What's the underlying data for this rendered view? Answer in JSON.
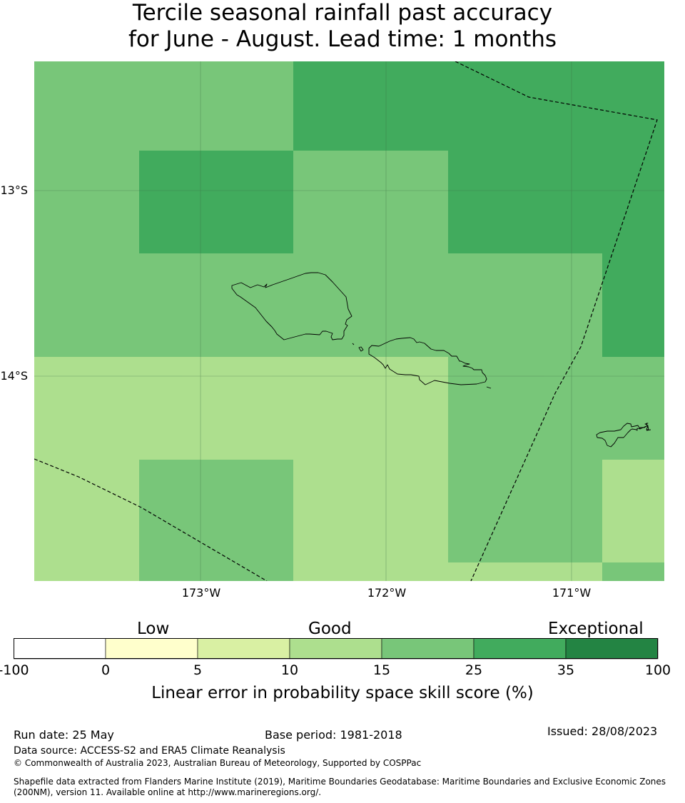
{
  "title": {
    "line1": "Tercile seasonal rainfall past accuracy",
    "line2": "for June - August. Lead time: 1 months"
  },
  "map": {
    "lat_labels": [
      "13°S",
      "14°S"
    ],
    "lon_labels": [
      "173°W",
      "172°W",
      "171°W"
    ],
    "category_colors": {
      "c10_15": "#addf8e",
      "c15_25": "#78c679",
      "c25_35": "#41ab5d"
    },
    "gridline_color": "#3d6b45",
    "coastline_color": "#000000",
    "boundary_style": "dashed"
  },
  "colorbar": {
    "category_labels": [
      "Low",
      "Good",
      "Exceptional"
    ],
    "ticks": [
      "-100",
      "0",
      "5",
      "10",
      "15",
      "25",
      "35",
      "100"
    ],
    "colors": [
      "#ffffff",
      "#ffffcc",
      "#d9f0a3",
      "#addf8e",
      "#78c679",
      "#41ab5d",
      "#238443"
    ],
    "axis_label": "Linear error in probability space skill score (%)"
  },
  "footer": {
    "run_date": "Run date: 25 May",
    "base_period": "Base period: 1981-2018",
    "issued": "Issued: 28/08/2023",
    "data_source": "Data source: ACCESS-S2 and ERA5 Climate Reanalysis",
    "copyright": "© Commonwealth of Australia 2023, Australian Bureau of Meteorology, Supported by COSPPac",
    "shapefile_line1": "Shapefile data extracted from Flanders Marine Institute (2019), Maritime Boundaries Geodatabase: Maritime Boundaries and Exclusive Economic Zones",
    "shapefile_line2": "(200NM), version 11. Available online at http://www.marineregions.org/."
  }
}
